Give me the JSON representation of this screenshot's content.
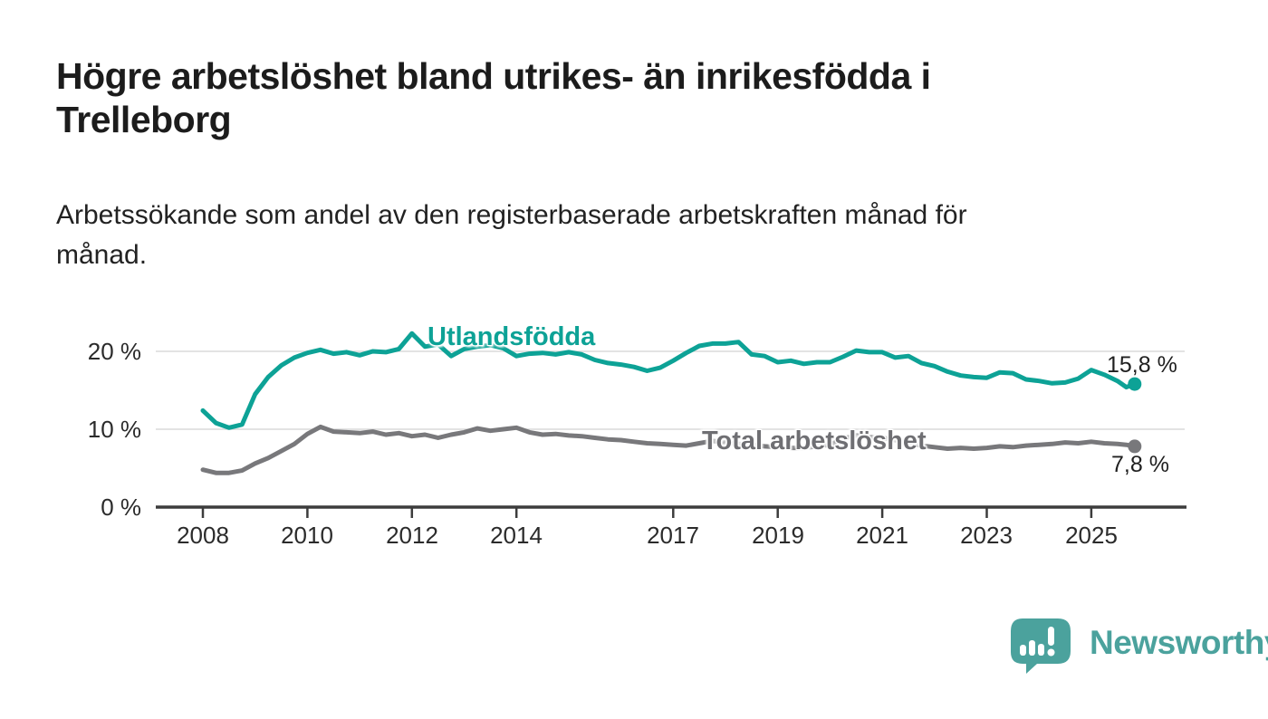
{
  "header": {
    "title": "Högre arbetslöshet bland utrikes- än inrikesfödda i\nTrelleborg",
    "subtitle": "Arbetssökande som andel av den registerbaserade arbetskraften månad för\nmånad."
  },
  "chart_data": {
    "type": "line",
    "title": "Högre arbetslöshet bland utrikes- än inrikesfödda i Trelleborg",
    "subtitle": "Arbetssökande som andel av den registerbaserade arbetskraften månad för månad.",
    "unit": "%",
    "ylim": [
      0,
      24
    ],
    "grid_values": [
      10,
      20
    ],
    "y_tick_labels": [
      "20 %",
      "10 %",
      "0 %"
    ],
    "x_tick_years": [
      2008,
      2010,
      2012,
      2014,
      2017,
      2019,
      2021,
      2023,
      2025
    ],
    "x_tick_labels": [
      "2008",
      "2010",
      "2012",
      "2014",
      "2017",
      "2019",
      "2021",
      "2023",
      "2025"
    ],
    "legend_position": "inline-on-line",
    "grid": true,
    "x": [
      2008.0,
      2008.25,
      2008.5,
      2008.75,
      2009.0,
      2009.25,
      2009.5,
      2009.75,
      2010.0,
      2010.25,
      2010.5,
      2010.75,
      2011.0,
      2011.25,
      2011.5,
      2011.75,
      2012.0,
      2012.25,
      2012.5,
      2012.75,
      2013.0,
      2013.25,
      2013.5,
      2013.75,
      2014.0,
      2014.25,
      2014.5,
      2014.75,
      2015.0,
      2015.25,
      2015.5,
      2015.75,
      2016.0,
      2016.25,
      2016.5,
      2016.75,
      2017.0,
      2017.25,
      2017.5,
      2017.75,
      2018.0,
      2018.25,
      2018.5,
      2018.75,
      2019.0,
      2019.25,
      2019.5,
      2019.75,
      2020.0,
      2020.25,
      2020.5,
      2020.75,
      2021.0,
      2021.25,
      2021.5,
      2021.75,
      2022.0,
      2022.25,
      2022.5,
      2022.75,
      2023.0,
      2023.25,
      2023.5,
      2023.75,
      2024.0,
      2024.25,
      2024.5,
      2024.75,
      2025.0,
      2025.25,
      2025.5,
      2025.67,
      2025.83
    ],
    "series": [
      {
        "name": "Utlandsfödda",
        "color": "#0da296",
        "end_label": "15,8 %",
        "end_value": 15.8,
        "values": [
          12.4,
          10.8,
          10.2,
          10.6,
          14.5,
          16.7,
          18.2,
          19.2,
          19.8,
          20.2,
          19.7,
          19.9,
          19.5,
          20.0,
          19.9,
          20.3,
          22.3,
          20.6,
          20.9,
          19.4,
          20.3,
          20.6,
          20.8,
          20.4,
          19.4,
          19.7,
          19.8,
          19.6,
          19.9,
          19.6,
          18.9,
          18.5,
          18.3,
          18.0,
          17.5,
          17.9,
          18.8,
          19.8,
          20.7,
          21.0,
          21.0,
          21.2,
          19.6,
          19.4,
          18.6,
          18.8,
          18.4,
          18.6,
          18.6,
          19.3,
          20.1,
          19.9,
          19.9,
          19.2,
          19.4,
          18.5,
          18.1,
          17.4,
          16.9,
          16.7,
          16.6,
          17.3,
          17.2,
          16.4,
          16.2,
          15.9,
          16.0,
          16.5,
          17.6,
          17.0,
          16.2,
          15.4,
          15.8
        ]
      },
      {
        "name": "Total arbetslöshet",
        "color": "#78787b",
        "end_label": "7,8 %",
        "end_value": 7.8,
        "values": [
          4.8,
          4.4,
          4.4,
          4.7,
          5.6,
          6.3,
          7.2,
          8.1,
          9.4,
          10.3,
          9.7,
          9.6,
          9.5,
          9.7,
          9.3,
          9.5,
          9.1,
          9.3,
          8.9,
          9.3,
          9.6,
          10.1,
          9.8,
          10.0,
          10.2,
          9.6,
          9.3,
          9.4,
          9.2,
          9.1,
          8.9,
          8.7,
          8.6,
          8.4,
          8.2,
          8.1,
          8.0,
          7.9,
          8.2,
          8.5,
          8.3,
          8.1,
          8.0,
          7.8,
          7.7,
          7.6,
          7.6,
          7.8,
          8.0,
          8.8,
          9.2,
          9.0,
          8.9,
          8.6,
          8.2,
          7.9,
          7.7,
          7.5,
          7.6,
          7.5,
          7.6,
          7.8,
          7.7,
          7.9,
          8.0,
          8.1,
          8.3,
          8.2,
          8.4,
          8.2,
          8.1,
          8.0,
          7.8
        ]
      }
    ]
  },
  "footer": {
    "brand": "Newsworthy"
  },
  "colors": {
    "accent_teal": "#0da296",
    "line_gray": "#78787b",
    "logo_teal": "#4ba29d",
    "axis": "#3c3c3c",
    "gridline": "#dadada",
    "text_dark": "#1c1c1c"
  }
}
